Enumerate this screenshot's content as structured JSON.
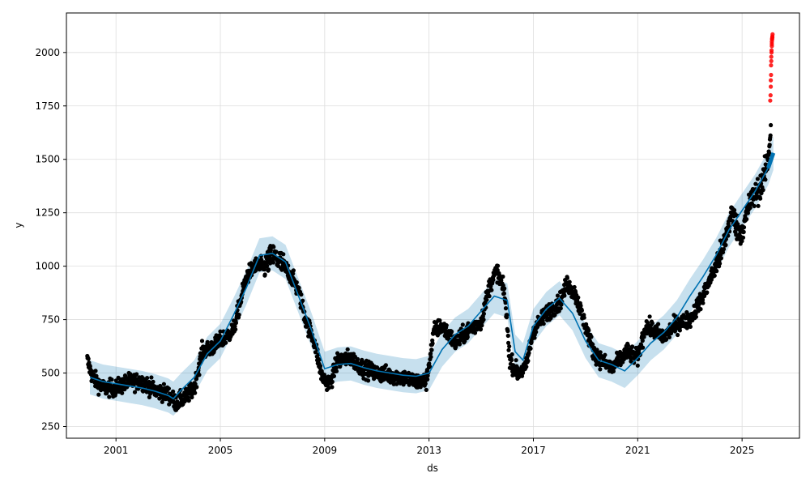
{
  "chart_data": {
    "type": "scatter",
    "title": "",
    "xlabel": "ds",
    "ylabel": "y",
    "xlim": [
      1999.1,
      2027.2
    ],
    "ylim": [
      195,
      2185
    ],
    "grid": true,
    "legend": "none",
    "x_ticks": [
      2001,
      2005,
      2009,
      2013,
      2017,
      2021,
      2025
    ],
    "x_tick_labels": [
      "2001",
      "2005",
      "2009",
      "2013",
      "2017",
      "2021",
      "2025"
    ],
    "y_ticks": [
      250,
      500,
      750,
      1000,
      1250,
      1500,
      1750,
      2000
    ],
    "y_tick_labels": [
      "250",
      "500",
      "750",
      "1000",
      "1250",
      "1500",
      "1750",
      "2000"
    ],
    "colors": {
      "observed": "#000000",
      "forecast_line": "#0072B2",
      "uncertainty_band": "#0072B2",
      "outliers": "#ff0000",
      "grid": "#dddddd"
    },
    "series": [
      {
        "kind": "forecast_line",
        "x": [
          2000.0,
          2000.5,
          2001.0,
          2001.5,
          2002.0,
          2002.5,
          2003.0,
          2003.2,
          2003.5,
          2004.0,
          2004.5,
          2005.0,
          2005.5,
          2006.0,
          2006.5,
          2007.0,
          2007.5,
          2008.0,
          2008.5,
          2009.0,
          2009.5,
          2010.0,
          2010.5,
          2011.0,
          2011.5,
          2012.0,
          2012.5,
          2013.0,
          2013.5,
          2014.0,
          2014.5,
          2015.0,
          2015.5,
          2016.0,
          2016.3,
          2016.6,
          2017.0,
          2017.5,
          2018.0,
          2018.5,
          2019.0,
          2019.5,
          2020.0,
          2020.5,
          2021.0,
          2021.5,
          2022.0,
          2022.5,
          2023.0,
          2023.5,
          2024.0,
          2024.5,
          2025.0,
          2025.5,
          2026.0,
          2026.2
        ],
        "y": [
          480,
          460,
          450,
          440,
          430,
          415,
          395,
          380,
          420,
          480,
          590,
          650,
          770,
          900,
          1050,
          1060,
          1020,
          860,
          700,
          520,
          540,
          545,
          525,
          510,
          500,
          490,
          485,
          500,
          610,
          680,
          720,
          790,
          860,
          840,
          600,
          560,
          720,
          800,
          850,
          780,
          650,
          560,
          540,
          510,
          570,
          640,
          690,
          760,
          860,
          950,
          1050,
          1170,
          1260,
          1350,
          1460,
          1530
        ]
      },
      {
        "kind": "uncertainty_band",
        "x": [
          2000.0,
          2000.5,
          2001.0,
          2001.5,
          2002.0,
          2002.5,
          2003.0,
          2003.2,
          2003.5,
          2004.0,
          2004.5,
          2005.0,
          2005.5,
          2006.0,
          2006.5,
          2007.0,
          2007.5,
          2008.0,
          2008.5,
          2009.0,
          2009.5,
          2010.0,
          2010.5,
          2011.0,
          2011.5,
          2012.0,
          2012.5,
          2013.0,
          2013.5,
          2014.0,
          2014.5,
          2015.0,
          2015.5,
          2016.0,
          2016.3,
          2016.6,
          2017.0,
          2017.5,
          2018.0,
          2018.5,
          2019.0,
          2019.5,
          2020.0,
          2020.5,
          2021.0,
          2021.5,
          2022.0,
          2022.5,
          2023.0,
          2023.5,
          2024.0,
          2024.5,
          2025.0,
          2025.5,
          2026.0,
          2026.2
        ],
        "lower": [
          400,
          380,
          370,
          360,
          350,
          335,
          315,
          300,
          340,
          400,
          510,
          570,
          690,
          820,
          970,
          980,
          940,
          780,
          620,
          440,
          460,
          465,
          445,
          430,
          420,
          410,
          405,
          420,
          530,
          600,
          640,
          710,
          780,
          760,
          520,
          480,
          640,
          720,
          770,
          700,
          570,
          480,
          460,
          430,
          490,
          560,
          610,
          680,
          780,
          870,
          970,
          1090,
          1180,
          1270,
          1380,
          1450
        ],
        "upper": [
          560,
          540,
          530,
          520,
          510,
          495,
          475,
          460,
          500,
          560,
          670,
          730,
          850,
          980,
          1130,
          1140,
          1100,
          940,
          780,
          600,
          620,
          625,
          605,
          590,
          580,
          570,
          565,
          580,
          690,
          760,
          800,
          870,
          940,
          920,
          680,
          640,
          800,
          880,
          930,
          860,
          730,
          640,
          620,
          590,
          650,
          720,
          770,
          840,
          940,
          1030,
          1130,
          1250,
          1340,
          1430,
          1540,
          1610
        ]
      },
      {
        "kind": "observed_points",
        "trend_x": [
          1999.9,
          2000.1,
          2000.5,
          2001.0,
          2001.5,
          2002.0,
          2002.5,
          2003.0,
          2003.3,
          2003.7,
          2004.0,
          2004.3,
          2004.7,
          2005.0,
          2005.5,
          2006.0,
          2006.3,
          2006.7,
          2007.0,
          2007.3,
          2007.7,
          2008.0,
          2008.3,
          2008.6,
          2008.9,
          2009.2,
          2009.5,
          2010.0,
          2010.5,
          2011.0,
          2011.5,
          2012.0,
          2012.5,
          2012.9,
          2013.2,
          2013.5,
          2014.0,
          2014.5,
          2015.0,
          2015.3,
          2015.6,
          2015.9,
          2016.1,
          2016.4,
          2016.7,
          2017.0,
          2017.5,
          2018.0,
          2018.3,
          2018.6,
          2019.0,
          2019.3,
          2019.6,
          2020.0,
          2020.3,
          2020.6,
          2021.0,
          2021.3,
          2021.6,
          2022.0,
          2022.5,
          2023.0,
          2023.5,
          2024.0,
          2024.3,
          2024.6,
          2024.9,
          2025.1,
          2025.3,
          2025.6,
          2025.8,
          2026.0,
          2026.1
        ],
        "trend_y": [
          560,
          480,
          430,
          430,
          460,
          460,
          420,
          400,
          360,
          390,
          430,
          600,
          620,
          650,
          700,
          950,
          1000,
          1000,
          1050,
          1020,
          960,
          880,
          740,
          650,
          480,
          450,
          560,
          570,
          520,
          500,
          490,
          480,
          460,
          460,
          700,
          720,
          640,
          700,
          740,
          900,
          980,
          870,
          560,
          500,
          520,
          700,
          780,
          830,
          920,
          870,
          720,
          600,
          560,
          520,
          560,
          600,
          570,
          720,
          700,
          670,
          730,
          750,
          860,
          1000,
          1100,
          1250,
          1150,
          1200,
          1300,
          1350,
          1400,
          1500,
          1650
        ],
        "spread": 28,
        "count": 2400
      },
      {
        "kind": "outlier_points",
        "x": [
          2026.08,
          2026.09,
          2026.1,
          2026.1,
          2026.11,
          2026.11,
          2026.12,
          2026.12,
          2026.13,
          2026.13,
          2026.14,
          2026.14,
          2026.14,
          2026.15,
          2026.15,
          2026.16,
          2026.16,
          2026.17
        ],
        "y": [
          1775,
          1800,
          1840,
          1870,
          1895,
          1940,
          1960,
          1980,
          2000,
          2010,
          2030,
          2040,
          2050,
          2060,
          2065,
          2070,
          2075,
          2085
        ]
      }
    ]
  }
}
